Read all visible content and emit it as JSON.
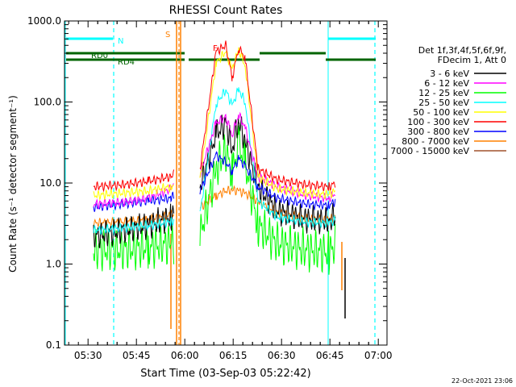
{
  "chart_data": {
    "type": "line",
    "title": "RHESSI Count Rates",
    "xlabel": "Start Time (03-Sep-03 05:22:42)",
    "ylabel": "Count Rate (s⁻¹ detector segment⁻¹)",
    "yscale": "log",
    "ylim": [
      0.1,
      1000
    ],
    "xlim_minutes": [
      0,
      100
    ],
    "x_ticks": [
      {
        "label": "05:30",
        "t": 7.3
      },
      {
        "label": "05:45",
        "t": 22.3
      },
      {
        "label": "06:00",
        "t": 37.3
      },
      {
        "label": "06:15",
        "t": 52.3
      },
      {
        "label": "06:30",
        "t": 67.3
      },
      {
        "label": "06:45",
        "t": 82.3
      },
      {
        "label": "07:00",
        "t": 97.3
      }
    ],
    "y_ticks": [
      {
        "label": "0.1",
        "v": 0.1
      },
      {
        "label": "1.0",
        "v": 1.0
      },
      {
        "label": "10.0",
        "v": 10.0
      },
      {
        "label": "100.0",
        "v": 100.0
      },
      {
        "label": "1000.0",
        "v": 1000.0
      }
    ],
    "legend": {
      "position": "right",
      "header": [
        "Det 1f,3f,4f,5f,6f,9f,",
        "FDecim 1, Att 0"
      ]
    },
    "series": [
      {
        "name": "3 - 6 keV",
        "color": "#000000",
        "x": [
          9,
          18,
          26,
          33,
          34,
          38,
          42,
          47,
          50,
          52,
          54,
          56,
          60,
          66,
          75,
          82,
          84
        ],
        "y": [
          2.2,
          2.6,
          3.0,
          3.8,
          4.2,
          null,
          9,
          40,
          55,
          26,
          60,
          32,
          9,
          4.5,
          3.6,
          3.4,
          4.0
        ]
      },
      {
        "name": "6 - 12 keV",
        "color": "#ff00ff",
        "x": [
          9,
          18,
          26,
          33,
          34,
          38,
          42,
          47,
          50,
          52,
          54,
          56,
          60,
          66,
          75,
          82,
          84
        ],
        "y": [
          5.5,
          5.8,
          6.5,
          8.5,
          9.5,
          null,
          13,
          55,
          65,
          40,
          70,
          48,
          12,
          9,
          7,
          6.5,
          7.5
        ]
      },
      {
        "name": "12 - 25 keV",
        "color": "#00ff00",
        "x": [
          9,
          18,
          26,
          33,
          34,
          38,
          42,
          47,
          50,
          52,
          54,
          56,
          60,
          66,
          75,
          82,
          84
        ],
        "y": [
          1.5,
          1.5,
          1.6,
          1.8,
          1.9,
          null,
          2.2,
          15,
          25,
          13,
          30,
          18,
          3,
          1.8,
          1.5,
          1.4,
          1.7
        ]
      },
      {
        "name": "25 - 50 keV",
        "color": "#00ffff",
        "x": [
          9,
          18,
          26,
          33,
          34,
          38,
          42,
          47,
          50,
          52,
          54,
          56,
          60,
          66,
          75,
          82,
          84
        ],
        "y": [
          2.6,
          2.8,
          3.0,
          3.3,
          3.5,
          null,
          4.2,
          95,
          140,
          90,
          145,
          100,
          6,
          3.8,
          3.3,
          3.2,
          3.5
        ]
      },
      {
        "name": "50 - 100 keV",
        "color": "#ffff00",
        "x": [
          9,
          18,
          26,
          33,
          34,
          38,
          42,
          47,
          50,
          52,
          54,
          56,
          60,
          66,
          75,
          82,
          84
        ],
        "y": [
          7.0,
          7.5,
          8.0,
          9.0,
          9.5,
          null,
          11,
          300,
          420,
          250,
          450,
          280,
          12,
          8.5,
          7.5,
          7.2,
          8.0
        ]
      },
      {
        "name": "100 - 300 keV",
        "color": "#ff0000",
        "x": [
          9,
          18,
          26,
          33,
          34,
          38,
          42,
          47,
          50,
          52,
          54,
          56,
          60,
          66,
          75,
          82,
          84
        ],
        "y": [
          9.0,
          9.5,
          10.5,
          12.0,
          13.0,
          null,
          15,
          420,
          500,
          200,
          470,
          350,
          15,
          11,
          9.5,
          9.0,
          10.0
        ]
      },
      {
        "name": "300 - 800 keV",
        "color": "#0000ff",
        "x": [
          9,
          18,
          26,
          33,
          34,
          38,
          42,
          47,
          50,
          52,
          54,
          56,
          60,
          66,
          75,
          82,
          84
        ],
        "y": [
          5.0,
          5.5,
          6.0,
          6.5,
          7.0,
          null,
          8.0,
          22,
          18,
          14,
          20,
          16,
          9,
          6.5,
          5.5,
          5.3,
          6.0
        ]
      },
      {
        "name": "800 - 7000 keV",
        "color": "#ff8000",
        "x": [
          9,
          18,
          26,
          33,
          34,
          38,
          42,
          47,
          50,
          52,
          54,
          56,
          60,
          66,
          75,
          82,
          84
        ],
        "y": [
          3.2,
          3.3,
          3.5,
          4.0,
          4.2,
          null,
          5.0,
          7.0,
          8.0,
          8.2,
          8.0,
          7.5,
          6.0,
          4.3,
          3.6,
          3.5,
          3.8
        ]
      },
      {
        "name": "7000 - 15000 keV",
        "color": "#a0522d",
        "x": [],
        "y": []
      }
    ],
    "annotations": [
      {
        "label": "N",
        "color": "#00ffff"
      },
      {
        "label": "RD0",
        "color": "#006400"
      },
      {
        "label": "RD4",
        "color": "#006400"
      },
      {
        "label": "S",
        "color": "#ff8000"
      },
      {
        "label": "F",
        "color": "#ff0000"
      }
    ],
    "timestamp": "22-Oct-2021 23:06"
  }
}
